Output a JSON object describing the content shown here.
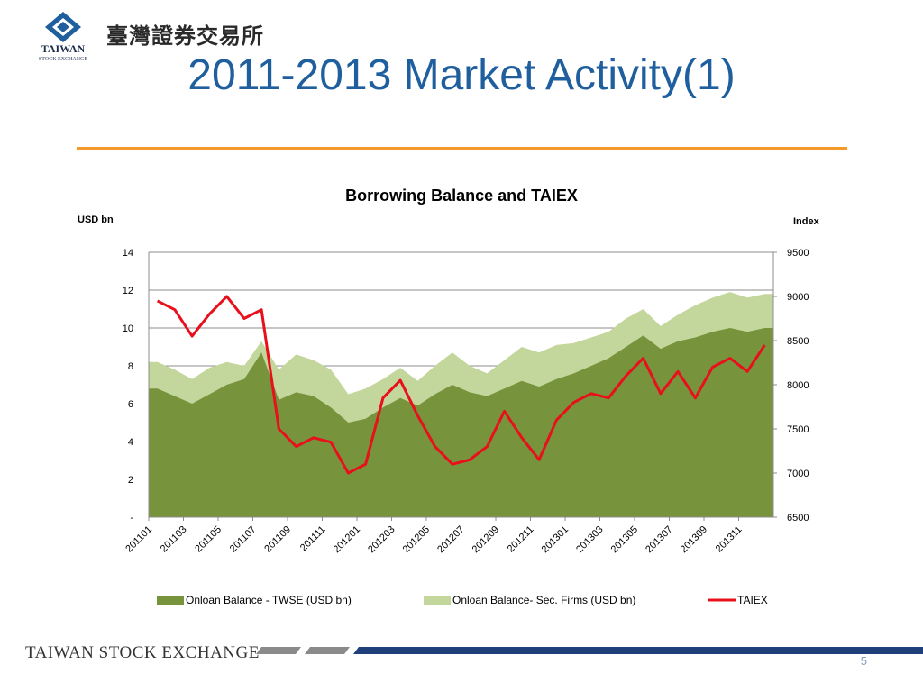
{
  "header": {
    "logo_text": "TAIWAN",
    "logo_subtext": "STOCK EXCHANGE",
    "logo_chinese": "臺灣證券交易所"
  },
  "slide_title": "2011-2013 Market Activity(1)",
  "footer": {
    "org_name": "TAIWAN STOCK EXCHANGE",
    "page_number": "5"
  },
  "colors": {
    "title": "#1f5f9e",
    "rule": "#f59a2a",
    "twse": "#77933c",
    "sec_firms": "#c3d69b",
    "taiex": "#e8101a",
    "footer_blue": "#1f3f7a"
  },
  "chart_data": {
    "type": "area",
    "title": "Borrowing Balance and TAIEX",
    "y_left_label": "USD bn",
    "y_right_label": "Index",
    "y_left_ticks": [
      "-",
      "2",
      "4",
      "6",
      "8",
      "10",
      "12",
      "14"
    ],
    "y_right_ticks": [
      "6500",
      "7000",
      "7500",
      "8000",
      "8500",
      "9000",
      "9500"
    ],
    "ylim_left": [
      0,
      14
    ],
    "ylim_right": [
      6500,
      9500
    ],
    "x_tick_labels": [
      "201101",
      "201103",
      "201105",
      "201107",
      "201109",
      "201111",
      "201201",
      "201203",
      "201205",
      "201207",
      "201209",
      "201211",
      "201301",
      "201303",
      "201305",
      "201307",
      "201309",
      "201311"
    ],
    "x": [
      "201101",
      "201102",
      "201103",
      "201104",
      "201105",
      "201106",
      "201107",
      "201108",
      "201109",
      "201110",
      "201111",
      "201112",
      "201201",
      "201202",
      "201203",
      "201204",
      "201205",
      "201206",
      "201207",
      "201208",
      "201209",
      "201210",
      "201211",
      "201212",
      "201301",
      "201302",
      "201303",
      "201304",
      "201305",
      "201306",
      "201307",
      "201308",
      "201309",
      "201310",
      "201311",
      "201312"
    ],
    "grid": true,
    "legend_position": "bottom",
    "series": [
      {
        "name": "Onloan Balance - TWSE (USD bn)",
        "kind": "area",
        "axis": "left",
        "color": "#77933c",
        "values": [
          6.8,
          6.4,
          6.0,
          6.5,
          7.0,
          7.3,
          8.7,
          6.2,
          6.6,
          6.4,
          5.8,
          5.0,
          5.2,
          5.8,
          6.3,
          5.9,
          6.5,
          7.0,
          6.6,
          6.4,
          6.8,
          7.2,
          6.9,
          7.3,
          7.6,
          8.0,
          8.4,
          9.0,
          9.6,
          8.9,
          9.3,
          9.5,
          9.8,
          10.0,
          9.8,
          10.0
        ]
      },
      {
        "name": "Onloan Balance- Sec. Firms (USD bn)",
        "kind": "area",
        "axis": "left",
        "color": "#c3d69b",
        "values": [
          8.2,
          7.8,
          7.3,
          7.9,
          8.2,
          8.0,
          9.3,
          7.8,
          8.6,
          8.3,
          7.8,
          6.5,
          6.8,
          7.3,
          7.9,
          7.2,
          8.0,
          8.7,
          8.0,
          7.6,
          8.3,
          9.0,
          8.7,
          9.1,
          9.2,
          9.5,
          9.8,
          10.5,
          11.0,
          10.1,
          10.7,
          11.2,
          11.6,
          11.9,
          11.6,
          11.8
        ]
      },
      {
        "name": "TAIEX",
        "kind": "line",
        "axis": "right",
        "color": "#e8101a",
        "values": [
          8950,
          8850,
          8550,
          8800,
          9000,
          8750,
          8850,
          7500,
          7300,
          7400,
          7350,
          7000,
          7100,
          7850,
          8050,
          7650,
          7300,
          7100,
          7150,
          7300,
          7700,
          7400,
          7150,
          7600,
          7800,
          7900,
          7850,
          8100,
          8300,
          7900,
          8150,
          7850,
          8200,
          8300,
          8150,
          8450
        ]
      }
    ]
  }
}
